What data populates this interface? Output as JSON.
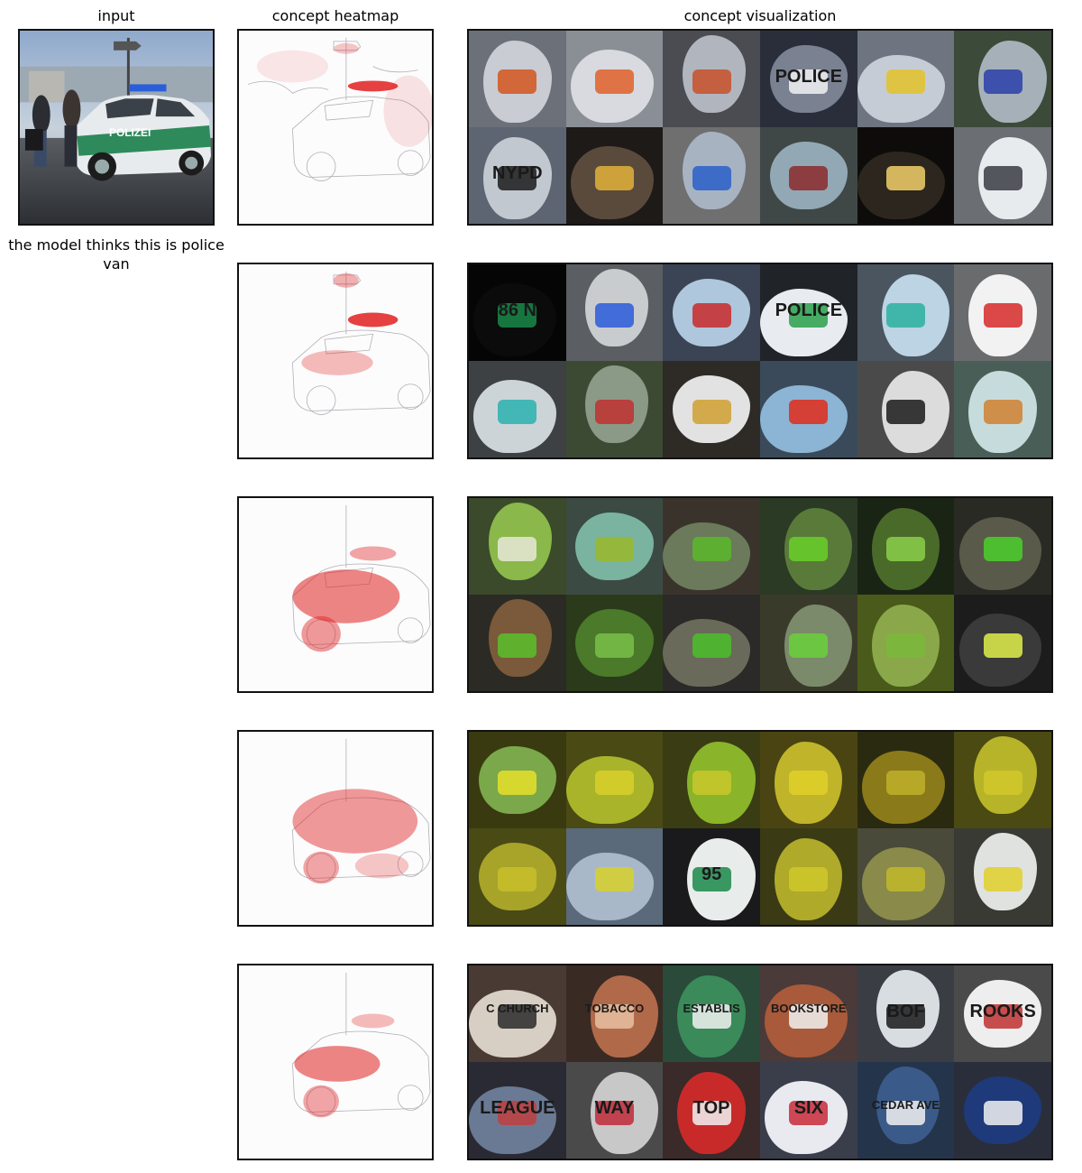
{
  "headers": {
    "input": "input",
    "heatmap": "concept heatmap",
    "visualization": "concept visualization"
  },
  "caption": "the model thinks this is police van",
  "input_image": {
    "vehicle_text": "POLIZEI"
  },
  "rows": [
    {
      "id": "row-1",
      "tiles": [
        {
          "bg": "#6b7079",
          "blob": "#c9ccd2",
          "accent": "#d4551f"
        },
        {
          "bg": "#8a8f96",
          "blob": "#d9dadf",
          "accent": "#e0602a"
        },
        {
          "bg": "#4a4c52",
          "blob": "#b1b6be",
          "accent": "#c8502a"
        },
        {
          "bg": "#2a2e3a",
          "blob": "#7a8191",
          "accent": "#f2f2f2",
          "text": "POLICE"
        },
        {
          "bg": "#6e7480",
          "blob": "#c6ccd6",
          "accent": "#e3c22a"
        },
        {
          "bg": "#3c4a3a",
          "blob": "#a6b0b8",
          "accent": "#2a3fa8"
        },
        {
          "bg": "#5d6572",
          "blob": "#c2c8cf",
          "accent": "#1b1b1b",
          "text": "NYPD"
        },
        {
          "bg": "#1d1a18",
          "blob": "#5a4a3c",
          "accent": "#e3b23a"
        },
        {
          "bg": "#6f6f70",
          "blob": "#a8b3c2",
          "accent": "#2a5ec9"
        },
        {
          "bg": "#3f4846",
          "blob": "#93a8b5",
          "accent": "#8a2a2a"
        },
        {
          "bg": "#0e0c0a",
          "blob": "#2c261e",
          "accent": "#f2d06a"
        },
        {
          "bg": "#6b6f74",
          "blob": "#e8ebee",
          "accent": "#3a3c44"
        }
      ]
    },
    {
      "id": "row-2",
      "tiles": [
        {
          "bg": "#050505",
          "blob": "#0b0b0b",
          "accent": "#1a8a4a",
          "text": "86 N"
        },
        {
          "bg": "#5b5e62",
          "blob": "#c9ccce",
          "accent": "#2a5ad9"
        },
        {
          "bg": "#3a4454",
          "blob": "#aec7dc",
          "accent": "#c82a2a"
        },
        {
          "bg": "#202328",
          "blob": "#e8ecf0",
          "accent": "#2aa04a",
          "text": "POLICE"
        },
        {
          "bg": "#4a5560",
          "blob": "#bcd4e4",
          "accent": "#2ab0a0"
        },
        {
          "bg": "#6a6b6c",
          "blob": "#f2f2f2",
          "accent": "#d62a2a"
        },
        {
          "bg": "#3e4144",
          "blob": "#cdd4d8",
          "accent": "#2ab0b0"
        },
        {
          "bg": "#3c4a34",
          "blob": "#8a9a86",
          "accent": "#c03030"
        },
        {
          "bg": "#2e2a26",
          "blob": "#e2e2e2",
          "accent": "#d0a030"
        },
        {
          "bg": "#3a4a5a",
          "blob": "#8cb4d4",
          "accent": "#e02a1a"
        },
        {
          "bg": "#4a4a4a",
          "blob": "#dcdcdc",
          "accent": "#1a1a1a"
        },
        {
          "bg": "#4a5e58",
          "blob": "#c6dcdc",
          "accent": "#d08030"
        }
      ]
    },
    {
      "id": "row-3",
      "tiles": [
        {
          "bg": "#3a4a2a",
          "blob": "#8ab84a",
          "accent": "#e8e8d8"
        },
        {
          "bg": "#3c4a44",
          "blob": "#7ab4a0",
          "accent": "#9ab82a"
        },
        {
          "bg": "#3a332c",
          "blob": "#6a7a5a",
          "accent": "#5ab82a"
        },
        {
          "bg": "#2a3a24",
          "blob": "#5a7a3a",
          "accent": "#6ad02a"
        },
        {
          "bg": "#1a2414",
          "blob": "#4a6a2a",
          "accent": "#8ad04a"
        },
        {
          "bg": "#2a2a24",
          "blob": "#5a5a4a",
          "accent": "#4ad02a"
        },
        {
          "bg": "#2c2a24",
          "blob": "#7a5a3a",
          "accent": "#5ac02a"
        },
        {
          "bg": "#2a3a1a",
          "blob": "#4a7a2a",
          "accent": "#7ac04a"
        },
        {
          "bg": "#2c2a28",
          "blob": "#6a6a5a",
          "accent": "#4ac02a"
        },
        {
          "bg": "#3a3a2a",
          "blob": "#7a8a6a",
          "accent": "#6ad03a"
        },
        {
          "bg": "#4a5a1a",
          "blob": "#8aa84a",
          "accent": "#7ab83a"
        },
        {
          "bg": "#1c1c1c",
          "blob": "#3a3a3a",
          "accent": "#e2f04a"
        }
      ]
    },
    {
      "id": "row-4",
      "tiles": [
        {
          "bg": "#3a3a10",
          "blob": "#7aa84a",
          "accent": "#e8e02a"
        },
        {
          "bg": "#4a4a14",
          "blob": "#aab42a",
          "accent": "#d8d02a"
        },
        {
          "bg": "#3a3c14",
          "blob": "#8ab42a",
          "accent": "#c8c82a"
        },
        {
          "bg": "#4a4412",
          "blob": "#c0b42a",
          "accent": "#e0d02a"
        },
        {
          "bg": "#2a2a10",
          "blob": "#8a7a1a",
          "accent": "#c0b02a"
        },
        {
          "bg": "#4a4a12",
          "blob": "#b8b42a",
          "accent": "#d0c82a"
        },
        {
          "bg": "#4a4a14",
          "blob": "#a8a42a",
          "accent": "#c8c02a"
        },
        {
          "bg": "#5a6a7a",
          "blob": "#a8b8c8",
          "accent": "#d8d02a"
        },
        {
          "bg": "#1a1a1c",
          "blob": "#e8ecea",
          "accent": "#1a8a4a",
          "text": "95"
        },
        {
          "bg": "#3a3a14",
          "blob": "#b0aa2a",
          "accent": "#d0c82a"
        },
        {
          "bg": "#4a4a3a",
          "blob": "#8a8a4a",
          "accent": "#c0b82a"
        },
        {
          "bg": "#3a3a34",
          "blob": "#e0e2e0",
          "accent": "#e0d02a"
        }
      ]
    },
    {
      "id": "row-5",
      "tiles": [
        {
          "bg": "#4a3a34",
          "blob": "#d8cfc4",
          "accent": "#2a2a2a",
          "text": "C CHURCH"
        },
        {
          "bg": "#3a2a24",
          "blob": "#b06a4a",
          "accent": "#e8c0a0",
          "text": "TOBACCO"
        },
        {
          "bg": "#2a4a3a",
          "blob": "#3a8a5a",
          "accent": "#f2f2f2",
          "text": "ESTABLIS"
        },
        {
          "bg": "#4a3a3a",
          "blob": "#a85a3a",
          "accent": "#f2f2f2",
          "text": "BOOKSTORE"
        },
        {
          "bg": "#3a3e44",
          "blob": "#d8dde2",
          "accent": "#1a1a1a",
          "text": "BOF"
        },
        {
          "bg": "#4a4a4a",
          "blob": "#eeeeee",
          "accent": "#c03030",
          "text": "ROOKS"
        },
        {
          "bg": "#2a2a34",
          "blob": "#6a7a94",
          "accent": "#c04040",
          "text": "LEAGUE"
        },
        {
          "bg": "#4a4a4a",
          "blob": "#c8c8c8",
          "accent": "#c02a3a",
          "text": "WAY"
        },
        {
          "bg": "#3a2a2a",
          "blob": "#c82a2a",
          "accent": "#f2f2f2",
          "text": "TOP"
        },
        {
          "bg": "#3a3e4a",
          "blob": "#e8eaf0",
          "accent": "#c82a3a",
          "text": "SIX"
        },
        {
          "bg": "#24344a",
          "blob": "#3a5a8a",
          "accent": "#f2f2f2",
          "text": "CEDAR AVE"
        },
        {
          "bg": "#2a2e3a",
          "blob": "#1e3a7a",
          "accent": "#f2f2f2"
        }
      ]
    }
  ]
}
